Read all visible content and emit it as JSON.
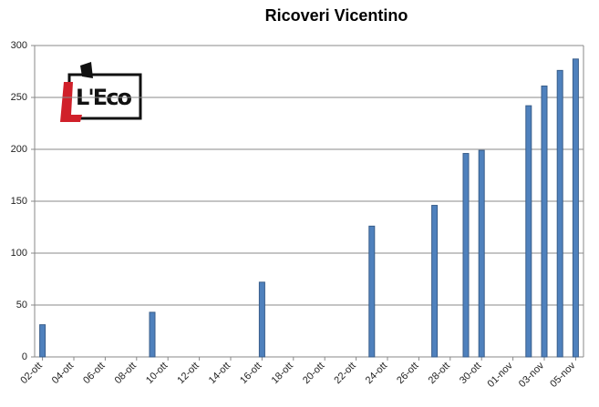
{
  "logo": "L'Eco",
  "chart_data": {
    "type": "bar",
    "title": "Ricoveri Vicentino",
    "categories": [
      "02-ott",
      null,
      "04-ott",
      null,
      "06-ott",
      null,
      "08-ott",
      null,
      "10-ott",
      null,
      "12-ott",
      null,
      "14-ott",
      null,
      "16-ott",
      null,
      "18-ott",
      null,
      "20-ott",
      null,
      "22-ott",
      null,
      "24-ott",
      null,
      "26-ott",
      null,
      "28-ott",
      null,
      "30-ott",
      null,
      "01-nov",
      null,
      "03-nov",
      null,
      "05-nov"
    ],
    "values": [
      31,
      null,
      null,
      null,
      null,
      null,
      null,
      43,
      null,
      null,
      null,
      null,
      null,
      null,
      72,
      null,
      null,
      null,
      null,
      null,
      null,
      126,
      null,
      null,
      null,
      146,
      null,
      196,
      199,
      null,
      null,
      242,
      261,
      276,
      287
    ],
    "color": "#4f81bd",
    "ylim": [
      0,
      300
    ],
    "yticks": [
      0,
      50,
      100,
      150,
      200,
      250,
      300
    ],
    "grid": true
  }
}
